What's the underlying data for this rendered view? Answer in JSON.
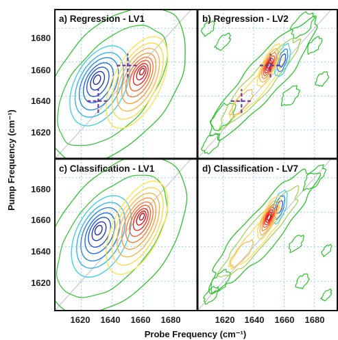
{
  "chart_data": {
    "type": "contour",
    "xlabel": "Probe Frequency (cm⁻¹)",
    "ylabel": "Pump Frequency (cm⁻¹)",
    "xlim": [
      1603,
      1695
    ],
    "ylim": [
      1603,
      1691
    ],
    "xticks": [
      "1620",
      "1640",
      "1660",
      "1680"
    ],
    "yticks": [
      "1620",
      "1640",
      "1660",
      "1680"
    ],
    "grid": true,
    "colors": {
      "negative": [
        "#1a2ca8",
        "#1f55d6",
        "#2a86e8",
        "#35b3ef",
        "#45cfe6"
      ],
      "positive": [
        "#ffd94a",
        "#ffb347",
        "#ff8a3a",
        "#ff5a28",
        "#ee2a1e",
        "#c8101b"
      ],
      "zero": "#2bc32b",
      "marker": "#6f3aa6",
      "diagonal": "#c8c8c8",
      "grid": "#8fd3e8"
    },
    "panels": [
      {
        "id": "a",
        "title": "a) Regression - LV1",
        "markers": [
          {
            "x": 1650,
            "y": 1658
          },
          {
            "x": 1631,
            "y": 1637
          }
        ],
        "negative_peak": {
          "x": 1630,
          "y": 1650
        },
        "positive_peak": {
          "x": 1660,
          "y": 1656
        }
      },
      {
        "id": "b",
        "title": "b) Regression - LV2",
        "markers": [
          {
            "x": 1651,
            "y": 1658
          },
          {
            "x": 1632,
            "y": 1637
          }
        ],
        "positive_peak": {
          "x": 1650,
          "y": 1658
        },
        "negative_peak": {
          "x": 1659,
          "y": 1661
        }
      },
      {
        "id": "c",
        "title": "c) Classification - LV1",
        "markers": [],
        "negative_peak": {
          "x": 1631,
          "y": 1650
        },
        "positive_peak": {
          "x": 1660,
          "y": 1659
        }
      },
      {
        "id": "d",
        "title": "d) Classification - LV7",
        "markers": [],
        "positive_peak": {
          "x": 1650,
          "y": 1657
        },
        "negative_peak": {
          "x": 1657,
          "y": 1663
        }
      }
    ]
  }
}
